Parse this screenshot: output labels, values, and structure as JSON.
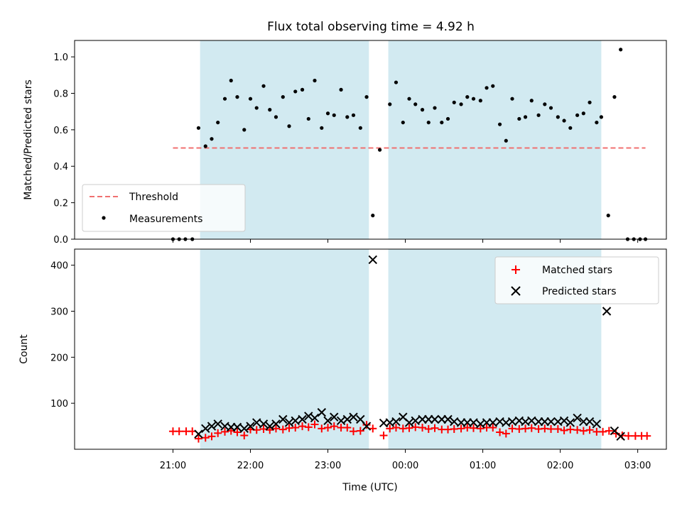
{
  "chart_data": {
    "title": "Flux total observing time = 4.92 h",
    "xlabel": "Time (UTC)",
    "x_unit": "hours relative to 00:00 UTC",
    "xlim": [
      -4.27,
      3.37
    ],
    "x_ticks": [
      {
        "value": -3,
        "label": "21:00"
      },
      {
        "value": -2,
        "label": "22:00"
      },
      {
        "value": -1,
        "label": "23:00"
      },
      {
        "value": 0,
        "label": "00:00"
      },
      {
        "value": 1,
        "label": "01:00"
      },
      {
        "value": 2,
        "label": "02:00"
      },
      {
        "value": 3,
        "label": "03:00"
      }
    ],
    "shaded_spans": [
      {
        "start": -2.65,
        "end": -0.47,
        "color": "#add8e6"
      },
      {
        "start": -0.22,
        "end": 2.53,
        "color": "#add8e6"
      }
    ],
    "panels": [
      {
        "type": "scatter",
        "ylabel": "Matched/Predicted stars",
        "ylim": [
          0,
          1.09
        ],
        "y_ticks": [
          0,
          0.2,
          0.4,
          0.6,
          0.8,
          1.0
        ],
        "y_tick_labels": [
          "0.0",
          "0.2",
          "0.4",
          "0.6",
          "0.8",
          "1.0"
        ],
        "legend_position": "lower-left",
        "threshold": {
          "name": "Threshold",
          "value": 0.5,
          "x_start": -3.0,
          "x_end": 3.1,
          "color": "#f07070",
          "style": "dashed"
        },
        "series": [
          {
            "name": "Measurements",
            "marker": "dot",
            "color": "#000000",
            "x": [
              -3.0,
              -2.92,
              -2.84,
              -2.75,
              -2.67,
              -2.58,
              -2.5,
              -2.42,
              -2.33,
              -2.25,
              -2.17,
              -2.08,
              -2.0,
              -1.92,
              -1.83,
              -1.75,
              -1.67,
              -1.58,
              -1.5,
              -1.42,
              -1.33,
              -1.25,
              -1.17,
              -1.08,
              -1.0,
              -0.92,
              -0.83,
              -0.75,
              -0.67,
              -0.58,
              -0.5,
              -0.42,
              -0.33,
              -0.2,
              -0.12,
              -0.03,
              0.05,
              0.13,
              0.22,
              0.3,
              0.38,
              0.47,
              0.55,
              0.63,
              0.72,
              0.8,
              0.88,
              0.97,
              1.05,
              1.13,
              1.22,
              1.3,
              1.38,
              1.47,
              1.55,
              1.63,
              1.72,
              1.8,
              1.88,
              1.97,
              2.05,
              2.13,
              2.22,
              2.3,
              2.38,
              2.47,
              2.53,
              2.62,
              2.7,
              2.78,
              2.87,
              2.95,
              3.03,
              3.1
            ],
            "y": [
              0.0,
              0.0,
              0.0,
              0.0,
              0.61,
              0.51,
              0.55,
              0.64,
              0.77,
              0.87,
              0.78,
              0.6,
              0.77,
              0.72,
              0.84,
              0.71,
              0.67,
              0.78,
              0.62,
              0.81,
              0.82,
              0.66,
              0.87,
              0.61,
              0.69,
              0.68,
              0.82,
              0.67,
              0.68,
              0.61,
              0.78,
              0.13,
              0.49,
              0.74,
              0.86,
              0.64,
              0.77,
              0.74,
              0.71,
              0.64,
              0.72,
              0.64,
              0.66,
              0.75,
              0.74,
              0.78,
              0.77,
              0.76,
              0.83,
              0.84,
              0.63,
              0.54,
              0.77,
              0.66,
              0.67,
              0.76,
              0.68,
              0.74,
              0.72,
              0.67,
              0.65,
              0.61,
              0.68,
              0.69,
              0.75,
              0.64,
              0.67,
              0.13,
              0.78,
              1.04,
              0.0,
              0.0,
              0.0,
              0.0
            ]
          }
        ]
      },
      {
        "type": "scatter",
        "ylabel": "Count",
        "ylim": [
          0,
          435
        ],
        "y_ticks": [
          100,
          200,
          300,
          400
        ],
        "y_tick_labels": [
          "100",
          "200",
          "300",
          "400"
        ],
        "legend_position": "upper-right",
        "series": [
          {
            "name": "Matched stars",
            "marker": "plus",
            "color": "#ff0000",
            "x": [
              -3.0,
              -2.92,
              -2.83,
              -2.75,
              -2.67,
              -2.58,
              -2.5,
              -2.42,
              -2.33,
              -2.25,
              -2.17,
              -2.08,
              -2.0,
              -1.92,
              -1.83,
              -1.75,
              -1.67,
              -1.58,
              -1.5,
              -1.42,
              -1.33,
              -1.25,
              -1.17,
              -1.08,
              -1.0,
              -0.92,
              -0.83,
              -0.75,
              -0.67,
              -0.58,
              -0.5,
              -0.42,
              -0.28,
              -0.2,
              -0.12,
              -0.03,
              0.05,
              0.13,
              0.22,
              0.3,
              0.38,
              0.47,
              0.55,
              0.63,
              0.72,
              0.8,
              0.88,
              0.97,
              1.05,
              1.13,
              1.22,
              1.3,
              1.38,
              1.47,
              1.55,
              1.63,
              1.72,
              1.8,
              1.88,
              1.97,
              2.05,
              2.13,
              2.22,
              2.3,
              2.38,
              2.47,
              2.55,
              2.63,
              2.72,
              2.8,
              2.88,
              2.97,
              3.05,
              3.12
            ],
            "y": [
              39,
              39,
              39,
              39,
              23,
              25,
              28,
              35,
              38,
              40,
              37,
              30,
              43,
              42,
              44,
              42,
              45,
              43,
              46,
              47,
              50,
              48,
              54,
              45,
              47,
              50,
              47,
              47,
              39,
              40,
              53,
              45,
              30,
              45,
              47,
              45,
              46,
              48,
              47,
              44,
              46,
              43,
              43,
              44,
              45,
              47,
              46,
              45,
              47,
              47,
              37,
              34,
              45,
              44,
              45,
              46,
              44,
              45,
              44,
              44,
              41,
              43,
              42,
              40,
              42,
              38,
              38,
              40,
              34,
              30,
              29,
              29,
              29,
              29
            ]
          },
          {
            "name": "Predicted stars",
            "marker": "x",
            "color": "#000000",
            "x": [
              -2.67,
              -2.58,
              -2.5,
              -2.42,
              -2.33,
              -2.25,
              -2.17,
              -2.08,
              -2.0,
              -1.92,
              -1.83,
              -1.75,
              -1.67,
              -1.58,
              -1.5,
              -1.42,
              -1.33,
              -1.25,
              -1.17,
              -1.08,
              -1.0,
              -0.92,
              -0.83,
              -0.75,
              -0.67,
              -0.58,
              -0.5,
              -0.42,
              -0.28,
              -0.2,
              -0.12,
              -0.03,
              0.05,
              0.13,
              0.22,
              0.3,
              0.38,
              0.47,
              0.55,
              0.63,
              0.72,
              0.8,
              0.88,
              0.97,
              1.05,
              1.13,
              1.22,
              1.3,
              1.38,
              1.47,
              1.55,
              1.63,
              1.72,
              1.8,
              1.88,
              1.97,
              2.05,
              2.13,
              2.22,
              2.3,
              2.38,
              2.47,
              2.6,
              2.7,
              2.78
            ],
            "y": [
              33,
              45,
              50,
              55,
              50,
              48,
              48,
              45,
              50,
              58,
              55,
              50,
              55,
              65,
              58,
              62,
              65,
              72,
              68,
              80,
              62,
              70,
              62,
              65,
              70,
              65,
              50,
              412,
              57,
              58,
              60,
              70,
              58,
              62,
              65,
              65,
              65,
              65,
              65,
              60,
              58,
              58,
              58,
              55,
              58,
              58,
              60,
              58,
              60,
              62,
              60,
              62,
              60,
              60,
              60,
              60,
              62,
              58,
              68,
              60,
              60,
              55,
              300,
              40,
              28
            ]
          }
        ]
      }
    ]
  }
}
